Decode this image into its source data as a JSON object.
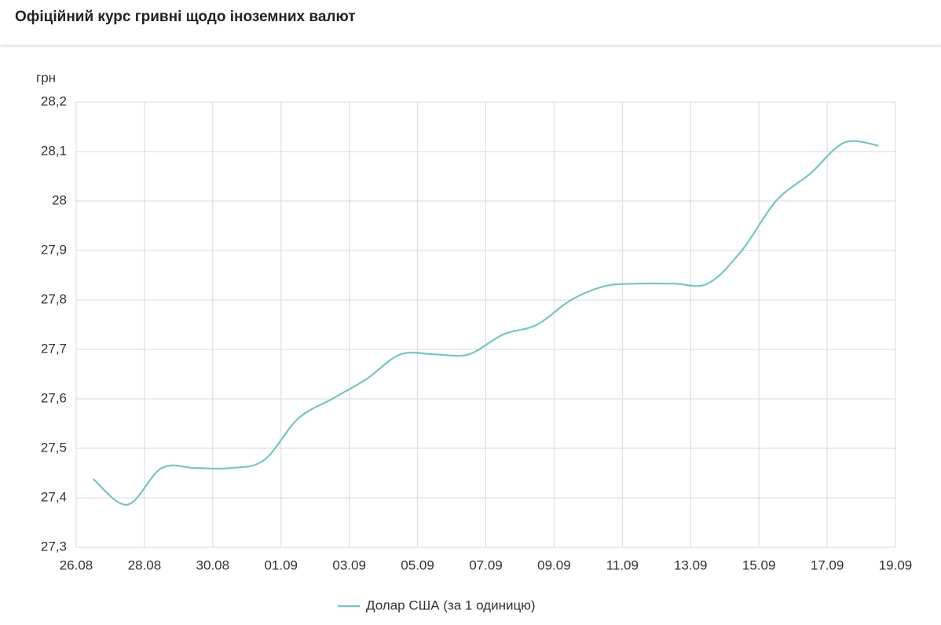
{
  "chart_data": {
    "type": "line",
    "title": "Офіційний курс гривні щодо іноземних валют",
    "y_label": "грн",
    "x": [
      "26.08",
      "27.08",
      "28.08",
      "29.08",
      "30.08",
      "31.08",
      "01.09",
      "02.09",
      "03.09",
      "04.09",
      "05.09",
      "06.09",
      "07.09",
      "08.09",
      "09.09",
      "10.09",
      "11.09",
      "12.09",
      "13.09",
      "14.09",
      "15.09",
      "16.09",
      "17.09",
      "18.09"
    ],
    "series": [
      {
        "name": "Долар США (за 1 одиницю)",
        "color": "#72c7c6",
        "values": [
          27.438,
          27.386,
          27.46,
          27.46,
          27.46,
          27.476,
          27.56,
          27.6,
          27.64,
          27.69,
          27.69,
          27.69,
          27.73,
          27.75,
          27.8,
          27.828,
          27.833,
          27.833,
          27.833,
          27.9,
          28.0,
          28.055,
          28.118,
          28.112
        ]
      }
    ],
    "xticks": [
      "26.08",
      "28.08",
      "30.08",
      "01.09",
      "03.09",
      "05.09",
      "07.09",
      "09.09",
      "11.09",
      "13.09",
      "15.09",
      "17.09",
      "19.09"
    ],
    "ylim": [
      27.3,
      28.2
    ],
    "yticks": [
      {
        "value": 27.3,
        "label": "27,3"
      },
      {
        "value": 27.4,
        "label": "27,4"
      },
      {
        "value": 27.5,
        "label": "27,5"
      },
      {
        "value": 27.6,
        "label": "27,6"
      },
      {
        "value": 27.7,
        "label": "27,7"
      },
      {
        "value": 27.8,
        "label": "27,8"
      },
      {
        "value": 27.9,
        "label": "27,9"
      },
      28,
      {
        "value": 28.1,
        "label": "28,1"
      },
      {
        "value": 28.2,
        "label": "28,2"
      }
    ],
    "grid": true,
    "legend": "bottom"
  }
}
